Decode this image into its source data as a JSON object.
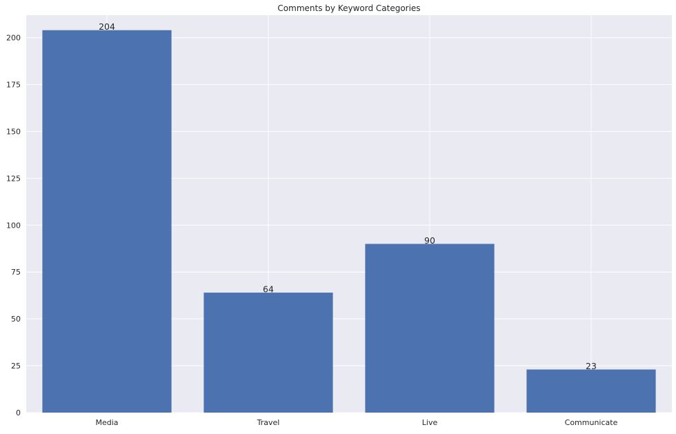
{
  "chart_data": {
    "type": "bar",
    "title": "Comments by Keyword Categories",
    "xlabel": "",
    "ylabel": "",
    "categories": [
      "Media",
      "Travel",
      "Live",
      "Communicate"
    ],
    "values": [
      204,
      64,
      90,
      23
    ],
    "data_labels": [
      "204",
      "64",
      "90",
      "23"
    ],
    "ylim": [
      0,
      212
    ],
    "yticks": [
      0,
      25,
      50,
      75,
      100,
      125,
      150,
      175,
      200
    ],
    "grid": true,
    "legend": "none",
    "colors": {
      "bar": "#4c72b0",
      "plot_background": "#eaeaf2",
      "grid": "#ffffff",
      "text": "#262626"
    }
  }
}
